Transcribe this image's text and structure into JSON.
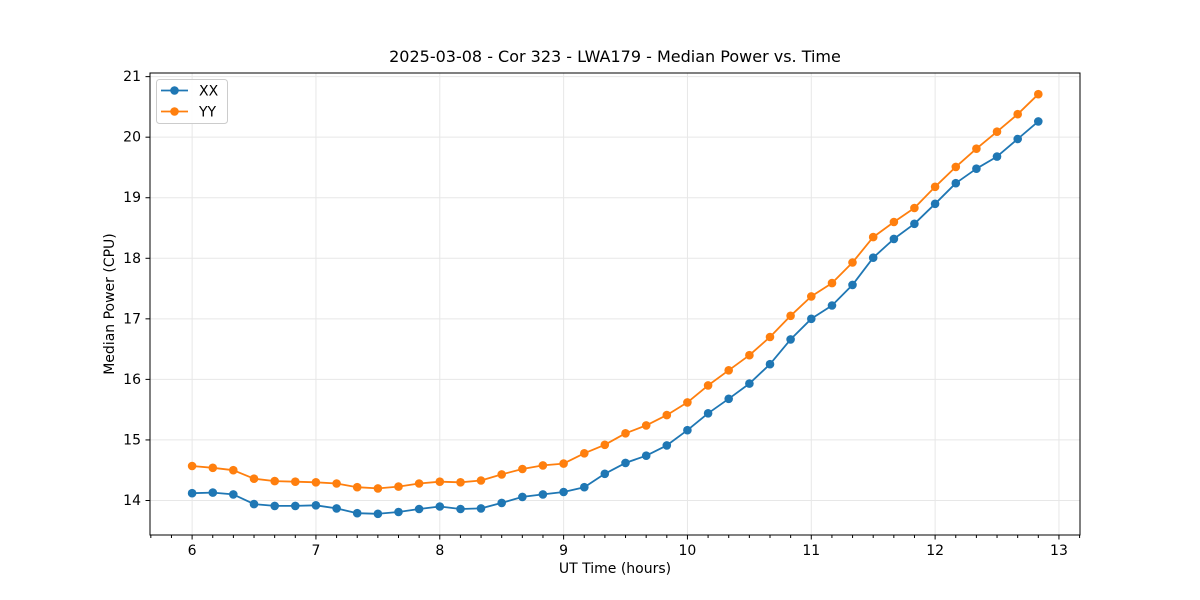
{
  "chart_data": {
    "type": "line",
    "title": "2025-03-08 - Cor 323 - LWA179 - Median Power vs. Time",
    "xlabel": "UT Time (hours)",
    "ylabel": "Median Power (CPU)",
    "xlim": [
      5.66,
      13.17
    ],
    "ylim": [
      13.43,
      21.06
    ],
    "x_ticks": [
      6,
      7,
      8,
      9,
      10,
      11,
      12,
      13
    ],
    "y_ticks": [
      14,
      15,
      16,
      17,
      18,
      19,
      20,
      21
    ],
    "x_minor_tick_step": 0.166667,
    "grid": true,
    "grid_color": "#e7e7e7",
    "legend": {
      "position": "upper-left",
      "entries": [
        "XX",
        "YY"
      ]
    },
    "x": [
      6.0,
      6.167,
      6.333,
      6.5,
      6.667,
      6.833,
      7.0,
      7.167,
      7.333,
      7.5,
      7.667,
      7.833,
      8.0,
      8.167,
      8.333,
      8.5,
      8.667,
      8.833,
      9.0,
      9.167,
      9.333,
      9.5,
      9.667,
      9.833,
      10.0,
      10.167,
      10.333,
      10.5,
      10.667,
      10.833,
      11.0,
      11.167,
      11.333,
      11.5,
      11.667,
      11.833,
      12.0,
      12.167,
      12.333,
      12.5,
      12.667,
      12.833
    ],
    "series": [
      {
        "name": "XX",
        "color": "#1f77b4",
        "values": [
          14.12,
          14.13,
          14.1,
          13.94,
          13.91,
          13.91,
          13.92,
          13.87,
          13.79,
          13.78,
          13.81,
          13.86,
          13.9,
          13.86,
          13.87,
          13.96,
          14.06,
          14.1,
          14.14,
          14.22,
          14.44,
          14.62,
          14.74,
          14.91,
          15.16,
          15.44,
          15.68,
          15.93,
          16.25,
          16.66,
          17.0,
          17.22,
          17.56,
          18.01,
          18.32,
          18.57,
          18.9,
          19.24,
          19.48,
          19.68,
          19.97,
          20.26
        ]
      },
      {
        "name": "YY",
        "color": "#ff7f0e",
        "values": [
          14.57,
          14.54,
          14.5,
          14.36,
          14.32,
          14.31,
          14.3,
          14.28,
          14.22,
          14.2,
          14.23,
          14.28,
          14.31,
          14.3,
          14.33,
          14.43,
          14.52,
          14.58,
          14.61,
          14.78,
          14.92,
          15.11,
          15.24,
          15.41,
          15.62,
          15.9,
          16.15,
          16.4,
          16.7,
          17.05,
          17.37,
          17.59,
          17.93,
          18.35,
          18.6,
          18.83,
          19.18,
          19.51,
          19.81,
          20.09,
          20.38,
          20.71
        ]
      }
    ]
  }
}
